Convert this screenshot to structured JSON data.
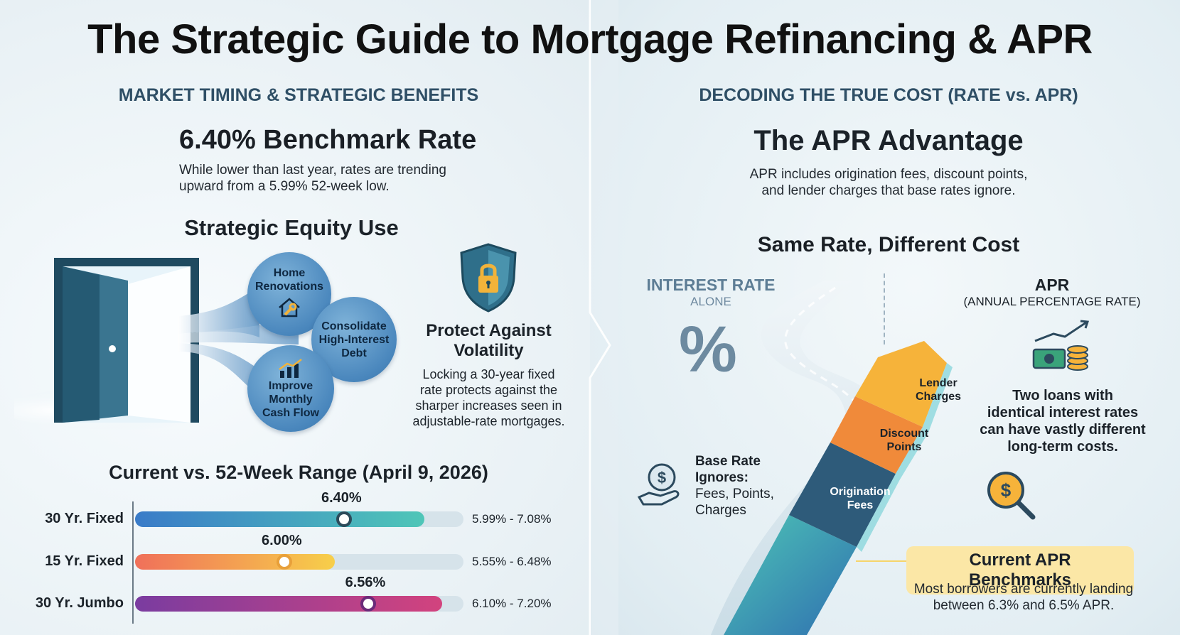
{
  "title": "The Strategic Guide to Mortgage Refinancing & APR",
  "left": {
    "section_heading": "MARKET TIMING & STRATEGIC BENEFITS",
    "benchmark_title": "6.40% Benchmark Rate",
    "benchmark_desc_line1": "While lower than last year, rates are trending",
    "benchmark_desc_line2": "upward from a 5.99% 52-week low.",
    "equity_title": "Strategic Equity Use",
    "bubbles": {
      "renovations": [
        "Home",
        "Renovations"
      ],
      "debt": [
        "Consolidate",
        "High-Interest",
        "Debt"
      ],
      "cashflow": [
        "Improve",
        "Monthly",
        "Cash Flow"
      ]
    },
    "protect_title_line1": "Protect Against",
    "protect_title_line2": "Volatility",
    "protect_desc": [
      "Locking a 30-year fixed",
      "rate protects against the",
      "sharper increases seen in",
      "adjustable-rate mortgages."
    ],
    "range_title": "Current vs. 52-Week Range (April 9, 2026)"
  },
  "chart_data": {
    "type": "bar",
    "title": "Current vs. 52-Week Range (April 9, 2026)",
    "unit": "%",
    "rows": [
      {
        "label": "30 Yr. Fixed",
        "current": 6.4,
        "current_label": "6.40%",
        "low": 5.99,
        "high": 7.08,
        "range_label": "5.99% - 7.08%",
        "color_start": "#3a7bc8",
        "color_end": "#4fc6b8",
        "marker_color": "#2c4a5a"
      },
      {
        "label": "15 Yr. Fixed",
        "current": 6.0,
        "current_label": "6.00%",
        "low": 5.55,
        "high": 6.48,
        "range_label": "5.55% - 6.48%",
        "color_start": "#f0705a",
        "color_end": "#f7cf4a",
        "marker_color": "#e8a03a"
      },
      {
        "label": "30 Yr. Jumbo",
        "current": 6.56,
        "current_label": "6.56%",
        "low": 6.1,
        "high": 7.2,
        "range_label": "6.10% - 7.20%",
        "color_start": "#7a3ca0",
        "color_end": "#d2437e",
        "marker_color": "#6b2a7a"
      }
    ]
  },
  "right": {
    "section_heading": "DECODING THE TRUE COST (RATE vs. APR)",
    "apr_title": "The APR Advantage",
    "apr_desc_line1": "APR includes origination fees, discount points,",
    "apr_desc_line2": "and lender charges that base rates ignore.",
    "same_rate_title": "Same Rate, Different Cost",
    "interest_head": "INTEREST RATE",
    "interest_sub": "ALONE",
    "percent_symbol": "%",
    "apr_head": "APR",
    "apr_sub": "(ANNUAL PERCENTAGE RATE)",
    "base_rate_title": [
      "Base Rate",
      "Ignores:"
    ],
    "base_rate_items": [
      "Fees, Points,",
      "Charges"
    ],
    "layers": {
      "lender": [
        "Lender",
        "Charges"
      ],
      "discount": [
        "Discount",
        "Points"
      ],
      "origination": [
        "Origination",
        "Fees"
      ]
    },
    "two_loans": [
      "Two loans with",
      "identical interest rates",
      "can have vastly different",
      "long-term costs."
    ],
    "benchmarks_title": "Current APR Benchmarks",
    "benchmarks_desc_line1": "Most borrowers are currently landing",
    "benchmarks_desc_line2": "between 6.3% and 6.5% APR."
  },
  "icons": {
    "door": "open-door-icon",
    "house_tools": "house-wrench-icon",
    "growth_chart": "bar-chart-growth-icon",
    "shield_lock": "shield-lock-icon",
    "coin_hand": "hand-coin-icon",
    "money_growth": "money-growth-icon",
    "magnifier_coin": "magnifier-coin-icon"
  },
  "colors": {
    "section_heading": "#2f4f66",
    "benchmark_highlight": "#fbe7a6",
    "lender_layer": "#f6b33a",
    "discount_layer": "#f08a3a",
    "origination_layer": "#2e5b7a"
  }
}
